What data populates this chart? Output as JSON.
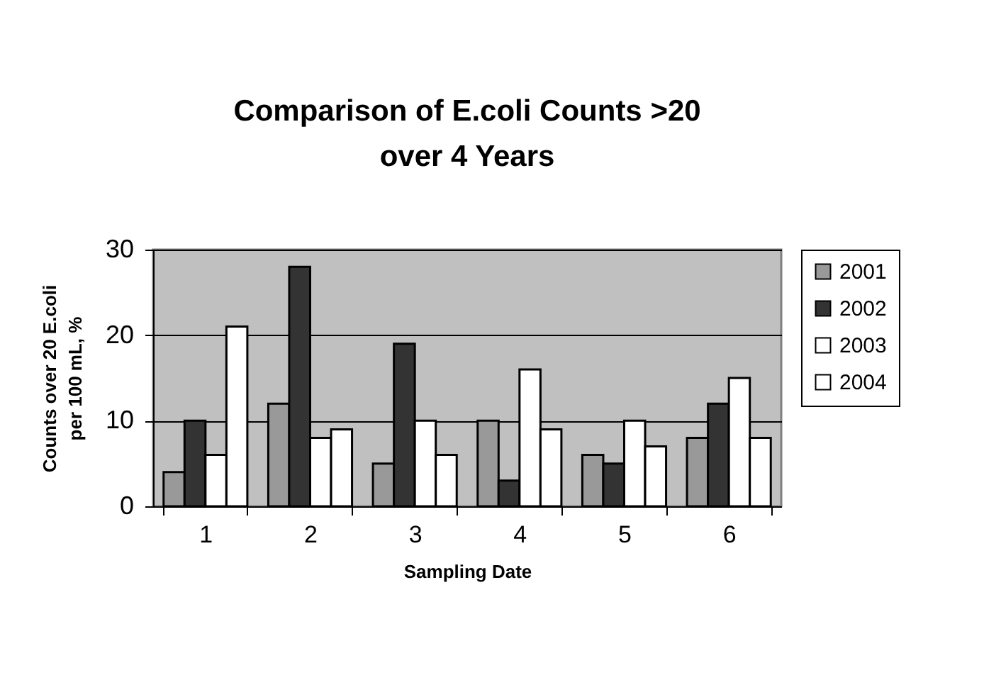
{
  "chart_data": {
    "type": "bar",
    "title": [
      "Comparison of E.coli Counts >20",
      "over 4 Years"
    ],
    "xlabel": "Sampling Date",
    "ylabel": [
      "Counts over 20 E.coli",
      "per 100 mL, %"
    ],
    "categories": [
      "1",
      "2",
      "3",
      "4",
      "5",
      "6"
    ],
    "series": [
      {
        "name": "2001",
        "color": "#999999",
        "values": [
          4,
          12,
          5,
          10,
          6,
          8
        ]
      },
      {
        "name": "2002",
        "color": "#333333",
        "values": [
          10,
          28,
          19,
          3,
          5,
          12
        ]
      },
      {
        "name": "2003",
        "color": "#ffffff",
        "values": [
          6,
          8,
          10,
          16,
          10,
          15
        ]
      },
      {
        "name": "2004",
        "color": "#ffffff",
        "values": [
          21,
          9,
          6,
          9,
          7,
          8
        ]
      }
    ],
    "ylim": [
      0,
      30
    ],
    "yticks": [
      0,
      10,
      20,
      30
    ],
    "grid": "y",
    "legend": "right"
  }
}
